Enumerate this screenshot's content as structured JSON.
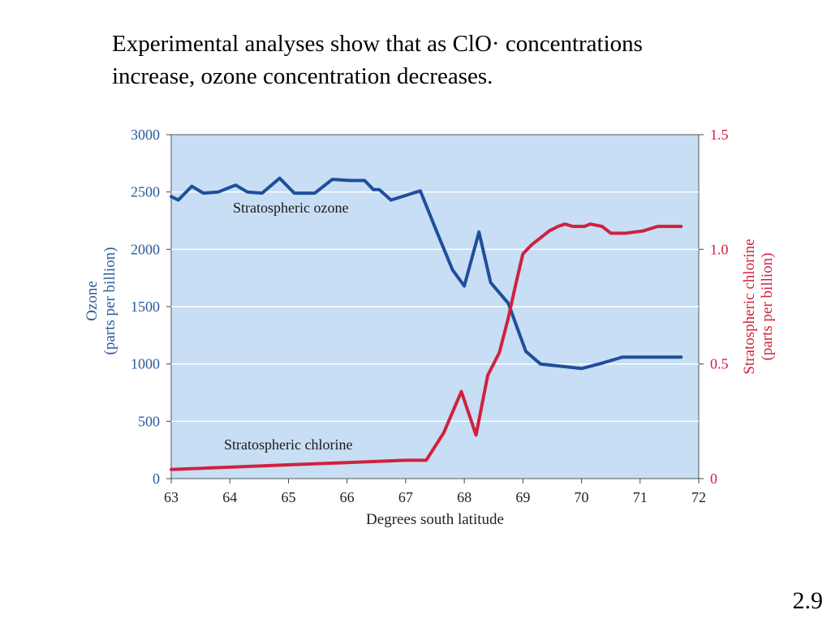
{
  "slide": {
    "heading_lines": [
      "Experimental analyses show that as ClO· concentrations",
      "increase, ozone concentration decreases."
    ],
    "number": "2.9"
  },
  "colors": {
    "plot_background": "#c7def4",
    "ozone": "#1f4f9b",
    "chlorine": "#d0213f",
    "left_axis_text": "#2a5a9c",
    "right_axis_text": "#d0213f"
  },
  "chart_data": {
    "type": "line",
    "xlabel": "Degrees south latitude",
    "ylabel_left": [
      "Ozone",
      "(parts per billion)"
    ],
    "ylabel_right": [
      "Stratospheric chlorine",
      "(parts per billion)"
    ],
    "xlim": [
      63,
      72
    ],
    "ylim_left": [
      0,
      3000
    ],
    "ylim_right": [
      0,
      1.5
    ],
    "x_ticks": [
      "63",
      "64",
      "65",
      "66",
      "67",
      "68",
      "69",
      "70",
      "71",
      "72"
    ],
    "y_ticks_left": [
      "0",
      "500",
      "1000",
      "1500",
      "2000",
      "2500",
      "3000"
    ],
    "y_ticks_right": [
      "0",
      "0.5",
      "1.0",
      "1.5"
    ],
    "grid": "horizontal",
    "series": [
      {
        "name": "Stratospheric ozone",
        "axis": "left",
        "x": [
          63.0,
          63.12,
          63.35,
          63.55,
          63.8,
          64.1,
          64.3,
          64.55,
          64.85,
          65.1,
          65.45,
          65.75,
          66.05,
          66.3,
          66.45,
          66.55,
          66.75,
          67.25,
          67.55,
          67.8,
          68.0,
          68.25,
          68.45,
          68.75,
          69.05,
          69.3,
          69.65,
          70.0,
          70.3,
          70.7,
          71.0,
          71.35,
          71.7
        ],
        "values": [
          2460,
          2430,
          2550,
          2490,
          2500,
          2560,
          2500,
          2490,
          2620,
          2490,
          2490,
          2610,
          2600,
          2600,
          2520,
          2520,
          2430,
          2510,
          2130,
          1820,
          1680,
          2150,
          1710,
          1530,
          1110,
          1000,
          980,
          960,
          1000,
          1060,
          1060,
          1060,
          1060
        ]
      },
      {
        "name": "Stratospheric chlorine",
        "axis": "right",
        "x": [
          63.0,
          64.0,
          65.0,
          66.0,
          67.0,
          67.35,
          67.65,
          67.95,
          68.2,
          68.4,
          68.6,
          68.75,
          68.88,
          69.0,
          69.15,
          69.3,
          69.45,
          69.6,
          69.72,
          69.85,
          70.05,
          70.15,
          70.35,
          70.5,
          70.75,
          71.05,
          71.3,
          71.7
        ],
        "values": [
          0.04,
          0.05,
          0.06,
          0.07,
          0.08,
          0.08,
          0.2,
          0.38,
          0.19,
          0.45,
          0.55,
          0.7,
          0.85,
          0.98,
          1.02,
          1.05,
          1.08,
          1.1,
          1.11,
          1.1,
          1.1,
          1.11,
          1.1,
          1.07,
          1.07,
          1.08,
          1.1,
          1.1
        ]
      }
    ]
  }
}
